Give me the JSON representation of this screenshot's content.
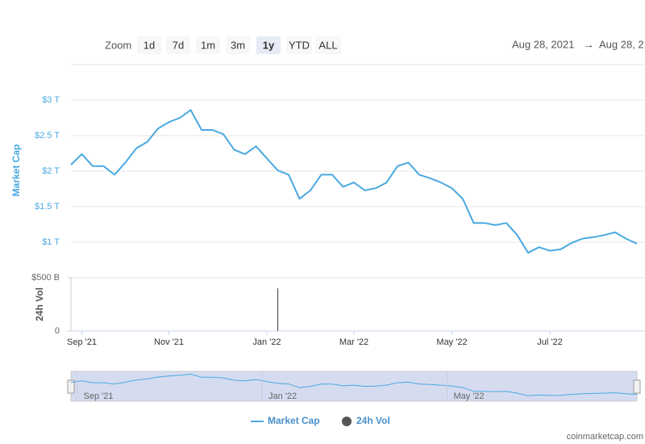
{
  "zoom": {
    "label": "Zoom",
    "buttons": [
      "1d",
      "7d",
      "1m",
      "3m",
      "1y",
      "YTD",
      "ALL"
    ],
    "active": 4
  },
  "date_range": {
    "from": "Aug 28, 2021",
    "arrow": "→",
    "to": "Aug 28, 2"
  },
  "chart_data": {
    "type": "line",
    "categories": [
      null,
      "Sep '21",
      null,
      null,
      null,
      null,
      null,
      null,
      null,
      "Nov '21",
      null,
      null,
      null,
      null,
      null,
      null,
      null,
      null,
      "Jan '22",
      null,
      null,
      null,
      null,
      null,
      null,
      null,
      "Mar '22",
      null,
      null,
      null,
      null,
      null,
      null,
      null,
      null,
      "May '22",
      null,
      null,
      null,
      null,
      null,
      null,
      null,
      null,
      "Jul '22",
      null,
      null,
      null,
      null,
      null,
      null,
      null,
      null
    ],
    "series": [
      {
        "name": "Market Cap",
        "color": "#4aa9e0",
        "values": [
          2.09,
          2.24,
          2.07,
          2.07,
          1.95,
          2.12,
          2.32,
          2.41,
          2.6,
          2.69,
          2.75,
          2.86,
          2.58,
          2.58,
          2.52,
          2.3,
          2.24,
          2.35,
          2.18,
          2.01,
          1.95,
          1.61,
          1.73,
          1.95,
          1.95,
          1.78,
          1.84,
          1.73,
          1.76,
          1.84,
          2.07,
          2.12,
          1.95,
          1.9,
          1.84,
          1.76,
          1.61,
          1.27,
          1.27,
          1.24,
          1.27,
          1.1,
          0.85,
          0.93,
          0.88,
          0.9,
          0.99,
          1.05,
          1.07,
          1.1,
          1.14,
          1.05,
          0.98
        ]
      },
      {
        "name": "24h Vol",
        "color": "#555555",
        "axis": "y2",
        "values": [
          null,
          null,
          null,
          null,
          null,
          null,
          null,
          null,
          null,
          null,
          null,
          null,
          null,
          null,
          null,
          null,
          null,
          null,
          null,
          400,
          null,
          null,
          null,
          null,
          null,
          null,
          null,
          null,
          null,
          null,
          null,
          null,
          null,
          null,
          null,
          null,
          null,
          null,
          null,
          null,
          null,
          null,
          null,
          null,
          null,
          null,
          null,
          null,
          null,
          null,
          null,
          null,
          null
        ]
      }
    ],
    "y_label": "Market Cap",
    "ylim": [
      0.5,
      3.5
    ],
    "yticks": [
      {
        "value": 1,
        "label": "$1 T"
      },
      {
        "value": 1.5,
        "label": "$1.5 T"
      },
      {
        "value": 2,
        "label": "$2 T"
      },
      {
        "value": 2.5,
        "label": "$2.5 T"
      },
      {
        "value": 3,
        "label": "$3 T"
      }
    ],
    "y2_label": "24h Vol",
    "y2lim": [
      0,
      500
    ],
    "y2ticks": [
      0,
      {
        "value": 500,
        "label": "$500 B"
      }
    ],
    "grid": true
  },
  "navigator": {
    "labels": [
      {
        "index": 1,
        "text": "Sep '21"
      },
      {
        "index": 18,
        "text": "Jan '22"
      },
      {
        "index": 35,
        "text": "May '22"
      }
    ]
  },
  "credit": "coinmarketcap.com"
}
